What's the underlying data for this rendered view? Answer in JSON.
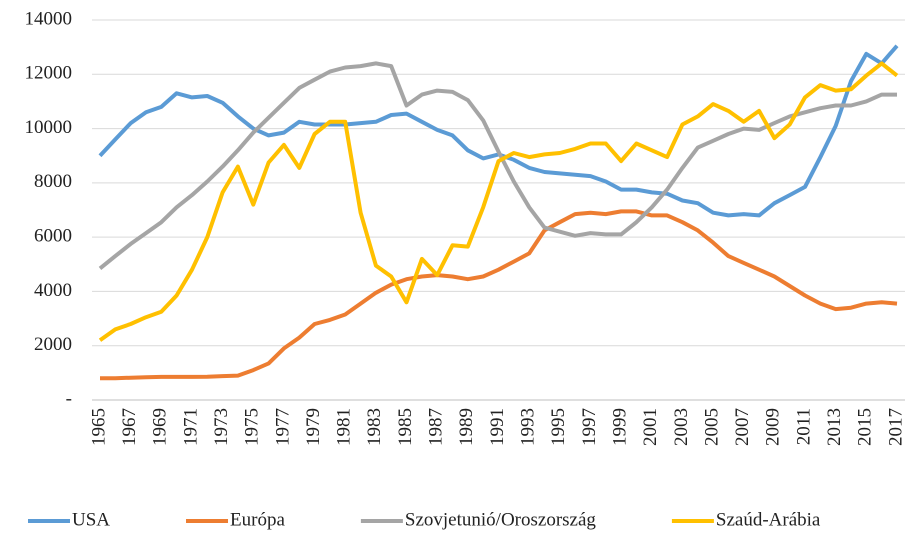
{
  "chart_data": {
    "type": "line",
    "categories": [
      "1965",
      null,
      "1967",
      null,
      "1969",
      null,
      "1971",
      null,
      "1973",
      null,
      "1975",
      null,
      "1977",
      null,
      "1979",
      null,
      "1981",
      null,
      "1983",
      null,
      "1985",
      null,
      "1987",
      null,
      "1989",
      null,
      "1991",
      null,
      "1993",
      null,
      "1995",
      null,
      "1997",
      null,
      "1999",
      null,
      "2001",
      null,
      "2003",
      null,
      "2005",
      null,
      "2007",
      null,
      "2009",
      null,
      "2011",
      null,
      "2013",
      null,
      "2015",
      null,
      "2017"
    ],
    "series": [
      {
        "name": "USA",
        "color": "#5b9bd5",
        "values": [
          9000,
          9600,
          10200,
          10600,
          10800,
          11300,
          11150,
          11200,
          10950,
          10450,
          10000,
          9750,
          9850,
          10250,
          10150,
          10150,
          10150,
          10200,
          10250,
          10500,
          10550,
          10250,
          9950,
          9750,
          9200,
          8900,
          9050,
          8850,
          8550,
          8400,
          8350,
          8300,
          8250,
          8050,
          7750,
          7750,
          7650,
          7600,
          7350,
          7250,
          6900,
          6800,
          6850,
          6800,
          7250,
          7550,
          7850,
          8950,
          10100,
          11750,
          12750,
          12400,
          13050
        ]
      },
      {
        "name": "Európa",
        "color": "#ed7d31",
        "values": [
          800,
          800,
          820,
          840,
          850,
          850,
          850,
          860,
          880,
          900,
          1100,
          1350,
          1900,
          2300,
          2800,
          2950,
          3150,
          3550,
          3950,
          4250,
          4450,
          4550,
          4600,
          4550,
          4450,
          4550,
          4800,
          5100,
          5400,
          6250,
          6550,
          6850,
          6900,
          6850,
          6950,
          6950,
          6800,
          6800,
          6550,
          6250,
          5800,
          5300,
          5050,
          4800,
          4550,
          4200,
          3850,
          3550,
          3350,
          3400,
          3550,
          3600,
          3550
        ]
      },
      {
        "name": "Szovjetunió/Oroszország",
        "color": "#a5a5a5",
        "values": [
          4850,
          5300,
          5750,
          6150,
          6550,
          7100,
          7550,
          8050,
          8600,
          9200,
          9850,
          10400,
          10950,
          11500,
          11800,
          12100,
          12250,
          12300,
          12400,
          12300,
          10850,
          11250,
          11400,
          11350,
          11050,
          10300,
          9150,
          8050,
          7100,
          6350,
          6200,
          6050,
          6150,
          6100,
          6100,
          6550,
          7100,
          7750,
          8550,
          9300,
          9550,
          9800,
          10000,
          9950,
          10200,
          10450,
          10600,
          10750,
          10850,
          10850,
          11000,
          11250,
          11250
        ]
      },
      {
        "name": "Szaúd-Arábia",
        "color": "#ffc000",
        "values": [
          2200,
          2600,
          2800,
          3050,
          3250,
          3850,
          4800,
          6000,
          7650,
          8600,
          7200,
          8750,
          9400,
          8550,
          9800,
          10250,
          10250,
          6900,
          4950,
          4550,
          3600,
          5200,
          4600,
          5700,
          5650,
          7100,
          8800,
          9100,
          8950,
          9050,
          9100,
          9250,
          9450,
          9450,
          8800,
          9450,
          9200,
          8950,
          10150,
          10450,
          10900,
          10650,
          10250,
          10650,
          9650,
          10150,
          11150,
          11600,
          11400,
          11450,
          11950,
          12400,
          11950
        ]
      }
    ],
    "ylim": [
      0,
      14000
    ],
    "yticks": [
      {
        "value": 0,
        "label": "-"
      },
      2000,
      4000,
      6000,
      8000,
      10000,
      12000,
      14000
    ],
    "grid": true,
    "legend": "bottom"
  }
}
